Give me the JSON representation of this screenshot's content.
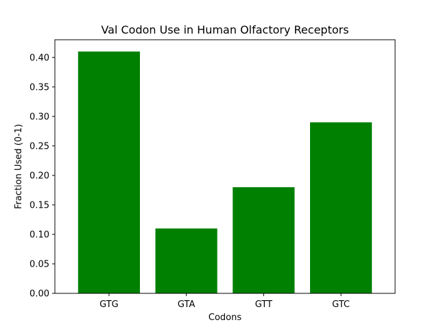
{
  "chart_data": {
    "type": "bar",
    "title": "Val Codon Use in Human Olfactory Receptors",
    "xlabel": "Codons",
    "ylabel": "Fraction Used (0-1)",
    "categories": [
      "GTG",
      "GTA",
      "GTT",
      "GTC"
    ],
    "values": [
      0.41,
      0.11,
      0.18,
      0.29
    ],
    "ylim": [
      0,
      0.43
    ],
    "yticks": [
      "0.00",
      "0.05",
      "0.10",
      "0.15",
      "0.20",
      "0.25",
      "0.30",
      "0.35",
      "0.40"
    ],
    "bar_color": "#008000",
    "grid": false,
    "legend": "none"
  }
}
